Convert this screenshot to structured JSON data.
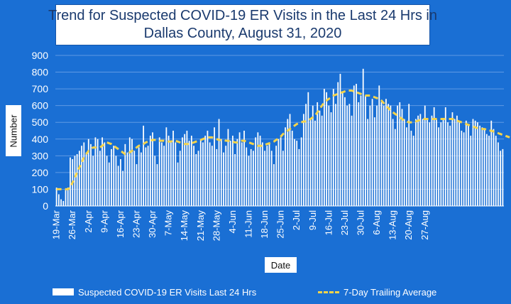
{
  "chart_data": {
    "type": "bar",
    "title": [
      "Trend for Suspected COVID-19 ER Visits in the Last 24 Hrs in",
      "Dallas County, August 31, 2020"
    ],
    "xlabel": "Date",
    "ylabel": "Number",
    "ylim": [
      0,
      900
    ],
    "yticks": [
      0,
      100,
      200,
      300,
      400,
      500,
      600,
      700,
      800,
      900
    ],
    "grid": true,
    "legend_placement": "bottom",
    "colors": {
      "background": "#1a6fd4",
      "bars": "#ffffff",
      "trend": "#f5d44b",
      "grid": "#5f9ae4",
      "text": "#ffffff"
    },
    "x_tick_labels": [
      "19-Mar",
      "26-Mar",
      "2-Apr",
      "9-Apr",
      "16-Apr",
      "23-Apr",
      "30-Apr",
      "7-May",
      "14-May",
      "21-May",
      "28-May",
      "4-Jun",
      "11-Jun",
      "18-Jun",
      "25-Jun",
      "2-Jul",
      "9-Jul",
      "16-Jul",
      "23-Jul",
      "30-Jul",
      "6-Aug",
      "13-Aug",
      "20-Aug",
      "27-Aug"
    ],
    "series": [
      {
        "name": "Suspected COVID-19 ER Visits Last 24 Hrs",
        "kind": "bar",
        "start_date": "19-Mar",
        "values": [
          110,
          70,
          40,
          30,
          100,
          110,
          290,
          280,
          300,
          310,
          330,
          360,
          380,
          320,
          400,
          370,
          300,
          410,
          400,
          330,
          410,
          380,
          300,
          260,
          340,
          360,
          300,
          240,
          280,
          210,
          370,
          320,
          410,
          400,
          330,
          250,
          350,
          320,
          480,
          350,
          360,
          420,
          440,
          300,
          250,
          410,
          380,
          360,
          470,
          420,
          380,
          450,
          380,
          260,
          330,
          410,
          430,
          450,
          390,
          420,
          360,
          310,
          330,
          400,
          380,
          420,
          450,
          380,
          360,
          470,
          340,
          520,
          400,
          320,
          360,
          460,
          390,
          420,
          310,
          400,
          440,
          380,
          450,
          350,
          300,
          340,
          330,
          410,
          440,
          420,
          380,
          330,
          360,
          370,
          330,
          250,
          360,
          400,
          410,
          330,
          470,
          520,
          550,
          450,
          400,
          390,
          340,
          410,
          550,
          610,
          680,
          520,
          600,
          510,
          620,
          570,
          540,
          700,
          680,
          600,
          560,
          700,
          610,
          740,
          790,
          680,
          650,
          600,
          610,
          540,
          720,
          730,
          620,
          660,
          820,
          660,
          520,
          600,
          640,
          530,
          600,
          720,
          620,
          600,
          640,
          610,
          600,
          520,
          460,
          600,
          620,
          580,
          520,
          470,
          610,
          450,
          420,
          520,
          540,
          550,
          520,
          600,
          520,
          500,
          540,
          590,
          520,
          470,
          500,
          520,
          590,
          500,
          480,
          560,
          520,
          540,
          500,
          450,
          440,
          510,
          490,
          420,
          520,
          510,
          500,
          480,
          470,
          460,
          430,
          420,
          510,
          460,
          420,
          380,
          330,
          340
        ],
        "display_overrides": {
          "_comment_none": ""
        }
      },
      {
        "name": "7-Day Trailing Average",
        "kind": "line",
        "start_date": "19-Mar",
        "values": [
          100,
          100,
          100,
          100,
          100,
          100,
          110,
          140,
          170,
          200,
          230,
          260,
          290,
          310,
          330,
          340,
          350,
          350,
          350,
          350,
          360,
          370,
          380,
          375,
          370,
          360,
          350,
          340,
          330,
          320,
          310,
          315,
          320,
          330,
          340,
          350,
          360,
          365,
          370,
          380,
          385,
          390,
          395,
          395,
          395,
          390,
          390,
          390,
          385,
          385,
          385,
          390,
          390,
          385,
          380,
          375,
          370,
          370,
          370,
          375,
          380,
          385,
          390,
          395,
          400,
          405,
          410,
          410,
          410,
          405,
          400,
          395,
          395,
          395,
          390,
          390,
          385,
          385,
          380,
          380,
          385,
          390,
          390,
          385,
          380,
          375,
          370,
          365,
          360,
          360,
          360,
          365,
          370,
          375,
          380,
          385,
          395,
          405,
          415,
          430,
          440,
          450,
          460,
          470,
          480,
          490,
          495,
          500,
          505,
          505,
          510,
          520,
          530,
          540,
          560,
          580,
          600,
          620,
          630,
          640,
          650,
          660,
          665,
          670,
          675,
          680,
          685,
          690,
          690,
          690,
          685,
          680,
          675,
          670,
          665,
          660,
          660,
          660,
          655,
          650,
          645,
          640,
          630,
          615,
          600,
          585,
          570,
          560,
          550,
          540,
          530,
          520,
          510,
          505,
          500,
          500,
          500,
          505,
          510,
          515,
          520,
          520,
          520,
          520,
          520,
          520,
          520,
          520,
          520,
          520,
          520,
          520,
          520,
          520,
          515,
          510,
          505,
          500,
          495,
          490,
          485,
          480,
          475,
          470,
          465,
          460,
          460,
          460,
          455,
          450,
          450,
          445,
          440,
          435,
          430,
          425,
          420,
          415,
          410
        ]
      }
    ]
  }
}
